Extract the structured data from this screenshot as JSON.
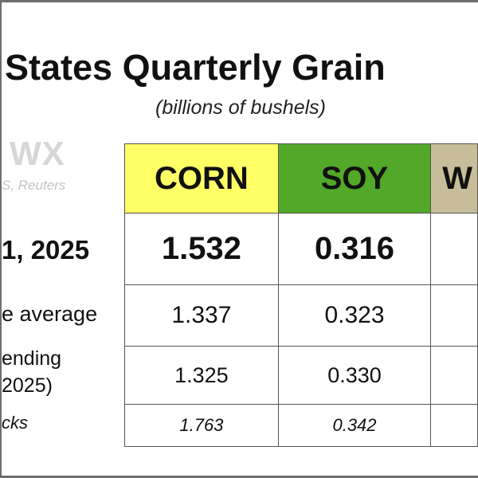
{
  "header": {
    "title": "States Quarterly Grain",
    "subtitle": "(billions of bushels)",
    "logo_text": "WX",
    "source_text": "S, Reuters"
  },
  "row_labels": {
    "date": "1, 2025",
    "average": "e average",
    "ending_line1": "ending",
    "ending_line2": "2025)",
    "stocks": "cks"
  },
  "columns": [
    {
      "label": "CORN",
      "color": "#ffff66"
    },
    {
      "label": "SOY",
      "color": "#52a829"
    },
    {
      "label": "W",
      "color": "#c7bd9a"
    }
  ],
  "rows": [
    {
      "values": [
        "1.532",
        "0.316",
        ""
      ]
    },
    {
      "values": [
        "1.337",
        "0.323",
        ""
      ]
    },
    {
      "values": [
        "1.325",
        "0.330",
        ""
      ]
    },
    {
      "values": [
        "1.763",
        "0.342",
        ""
      ]
    }
  ]
}
